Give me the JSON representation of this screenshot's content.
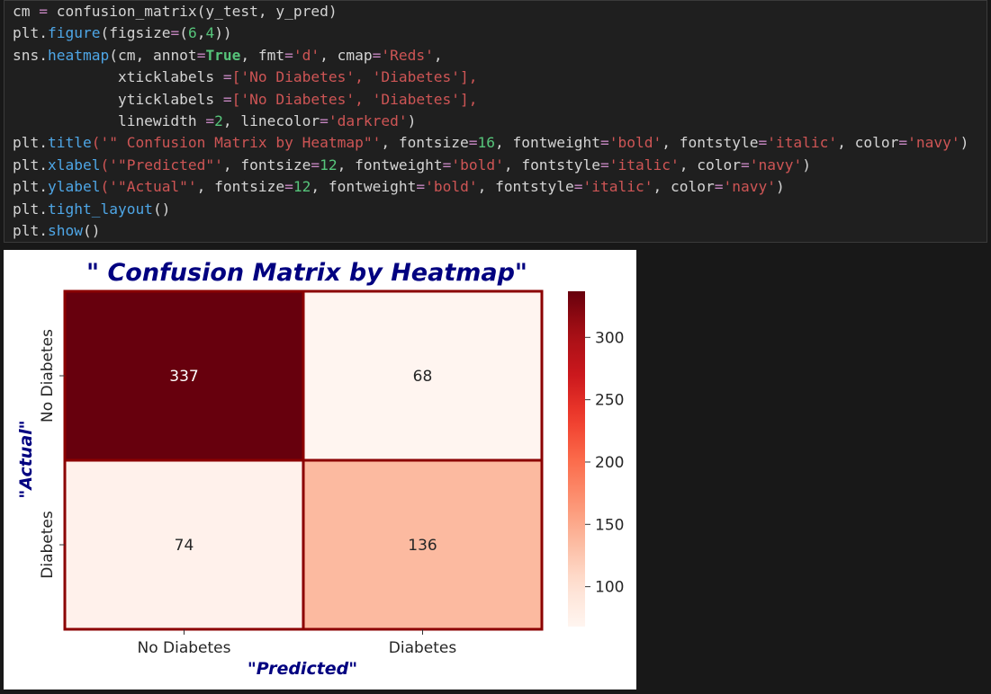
{
  "code_cell": {
    "lines": [
      [
        {
          "t": "cm ",
          "c": ""
        },
        {
          "t": "=",
          "c": "op"
        },
        {
          "t": " confusion_matrix(y_test, y_pred)",
          "c": ""
        }
      ],
      [
        {
          "t": "plt.",
          "c": ""
        },
        {
          "t": "figure",
          "c": "fn"
        },
        {
          "t": "(figsize",
          "c": ""
        },
        {
          "t": "=",
          "c": "op"
        },
        {
          "t": "(",
          "c": ""
        },
        {
          "t": "6",
          "c": "num"
        },
        {
          "t": ",",
          "c": ""
        },
        {
          "t": "4",
          "c": "num"
        },
        {
          "t": "))",
          "c": ""
        }
      ],
      [
        {
          "t": "sns.",
          "c": ""
        },
        {
          "t": "heatmap",
          "c": "fn"
        },
        {
          "t": "(cm, annot",
          "c": ""
        },
        {
          "t": "=",
          "c": "op"
        },
        {
          "t": "True",
          "c": "true"
        },
        {
          "t": ", fmt",
          "c": ""
        },
        {
          "t": "=",
          "c": "op"
        },
        {
          "t": "'d'",
          "c": "str"
        },
        {
          "t": ", cmap",
          "c": ""
        },
        {
          "t": "=",
          "c": "op"
        },
        {
          "t": "'Reds'",
          "c": "str"
        },
        {
          "t": ",",
          "c": ""
        }
      ],
      [
        {
          "t": "            xticklabels ",
          "c": ""
        },
        {
          "t": "=",
          "c": "op"
        },
        {
          "t": "['No Diabetes', 'Diabetes'],",
          "c": "str"
        }
      ],
      [
        {
          "t": "            yticklabels ",
          "c": ""
        },
        {
          "t": "=",
          "c": "op"
        },
        {
          "t": "['No Diabetes', 'Diabetes'],",
          "c": "str"
        }
      ],
      [
        {
          "t": "            linewidth ",
          "c": ""
        },
        {
          "t": "=",
          "c": "op"
        },
        {
          "t": "2",
          "c": "num"
        },
        {
          "t": ", linecolor",
          "c": ""
        },
        {
          "t": "=",
          "c": "op"
        },
        {
          "t": "'darkred'",
          "c": "str"
        },
        {
          "t": ")",
          "c": ""
        }
      ],
      [
        {
          "t": "plt.",
          "c": ""
        },
        {
          "t": "title",
          "c": "fn"
        },
        {
          "t": "('\" Confusion Matrix by Heatmap\"'",
          "c": "str"
        },
        {
          "t": ", fontsize",
          "c": ""
        },
        {
          "t": "=",
          "c": "op"
        },
        {
          "t": "16",
          "c": "num"
        },
        {
          "t": ", fontweight",
          "c": ""
        },
        {
          "t": "=",
          "c": "op"
        },
        {
          "t": "'bold'",
          "c": "str"
        },
        {
          "t": ", fontstyle",
          "c": ""
        },
        {
          "t": "=",
          "c": "op"
        },
        {
          "t": "'italic'",
          "c": "str"
        },
        {
          "t": ", color",
          "c": ""
        },
        {
          "t": "=",
          "c": "op"
        },
        {
          "t": "'navy'",
          "c": "str"
        },
        {
          "t": ")",
          "c": ""
        }
      ],
      [
        {
          "t": "plt.",
          "c": ""
        },
        {
          "t": "xlabel",
          "c": "fn"
        },
        {
          "t": "('\"Predicted\"'",
          "c": "str"
        },
        {
          "t": ", fontsize",
          "c": ""
        },
        {
          "t": "=",
          "c": "op"
        },
        {
          "t": "12",
          "c": "num"
        },
        {
          "t": ", fontweight",
          "c": ""
        },
        {
          "t": "=",
          "c": "op"
        },
        {
          "t": "'bold'",
          "c": "str"
        },
        {
          "t": ", fontstyle",
          "c": ""
        },
        {
          "t": "=",
          "c": "op"
        },
        {
          "t": "'italic'",
          "c": "str"
        },
        {
          "t": ", color",
          "c": ""
        },
        {
          "t": "=",
          "c": "op"
        },
        {
          "t": "'navy'",
          "c": "str"
        },
        {
          "t": ")",
          "c": ""
        }
      ],
      [
        {
          "t": "plt.",
          "c": ""
        },
        {
          "t": "ylabel",
          "c": "fn"
        },
        {
          "t": "('\"Actual\"'",
          "c": "str"
        },
        {
          "t": ", fontsize",
          "c": ""
        },
        {
          "t": "=",
          "c": "op"
        },
        {
          "t": "12",
          "c": "num"
        },
        {
          "t": ", fontweight",
          "c": ""
        },
        {
          "t": "=",
          "c": "op"
        },
        {
          "t": "'bold'",
          "c": "str"
        },
        {
          "t": ", fontstyle",
          "c": ""
        },
        {
          "t": "=",
          "c": "op"
        },
        {
          "t": "'italic'",
          "c": "str"
        },
        {
          "t": ", color",
          "c": ""
        },
        {
          "t": "=",
          "c": "op"
        },
        {
          "t": "'navy'",
          "c": "str"
        },
        {
          "t": ")",
          "c": ""
        }
      ],
      [
        {
          "t": "plt.",
          "c": ""
        },
        {
          "t": "tight_layout",
          "c": "fn"
        },
        {
          "t": "()",
          "c": ""
        }
      ],
      [
        {
          "t": "plt.",
          "c": ""
        },
        {
          "t": "show",
          "c": "fn"
        },
        {
          "t": "()",
          "c": ""
        }
      ]
    ]
  },
  "chart_data": {
    "type": "heatmap",
    "title": "\" Confusion Matrix by Heatmap\"",
    "xlabel": "\"Predicted\"",
    "ylabel": "\"Actual\"",
    "x_categories": [
      "No Diabetes",
      "Diabetes"
    ],
    "y_categories": [
      "No Diabetes",
      "Diabetes"
    ],
    "values": [
      [
        337,
        68
      ],
      [
        74,
        136
      ]
    ],
    "colorbar_ticks": [
      100,
      150,
      200,
      250,
      300
    ],
    "colorbar_range": [
      68,
      337
    ],
    "colormap": "Reds",
    "linecolor": "#8b0000",
    "label_color": "#000080"
  }
}
